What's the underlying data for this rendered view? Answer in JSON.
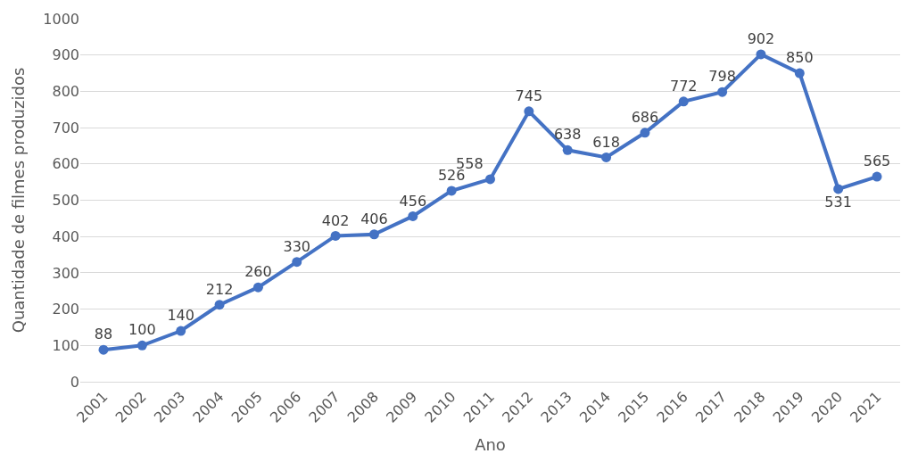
{
  "chart_data": {
    "type": "line",
    "xlabel": "Ano",
    "ylabel": "Quantidade de filmes produzidos",
    "categories": [
      "2001",
      "2002",
      "2003",
      "2004",
      "2005",
      "2006",
      "2007",
      "2008",
      "2009",
      "2010",
      "2011",
      "2012",
      "2013",
      "2014",
      "2015",
      "2016",
      "2017",
      "2018",
      "2019",
      "2020",
      "2021"
    ],
    "series": [
      {
        "color": "#4472c4",
        "values": [
          88,
          100,
          140,
          212,
          260,
          330,
          402,
          406,
          456,
          526,
          558,
          745,
          638,
          618,
          686,
          772,
          798,
          902,
          850,
          531,
          565
        ]
      }
    ],
    "ylim": [
      0,
      1000
    ],
    "yticks": [
      0,
      100,
      200,
      300,
      400,
      500,
      600,
      700,
      800,
      900,
      1000
    ],
    "grid": "y",
    "legend": false,
    "marker": "circle",
    "line_style": "solid",
    "data_labels": true
  }
}
